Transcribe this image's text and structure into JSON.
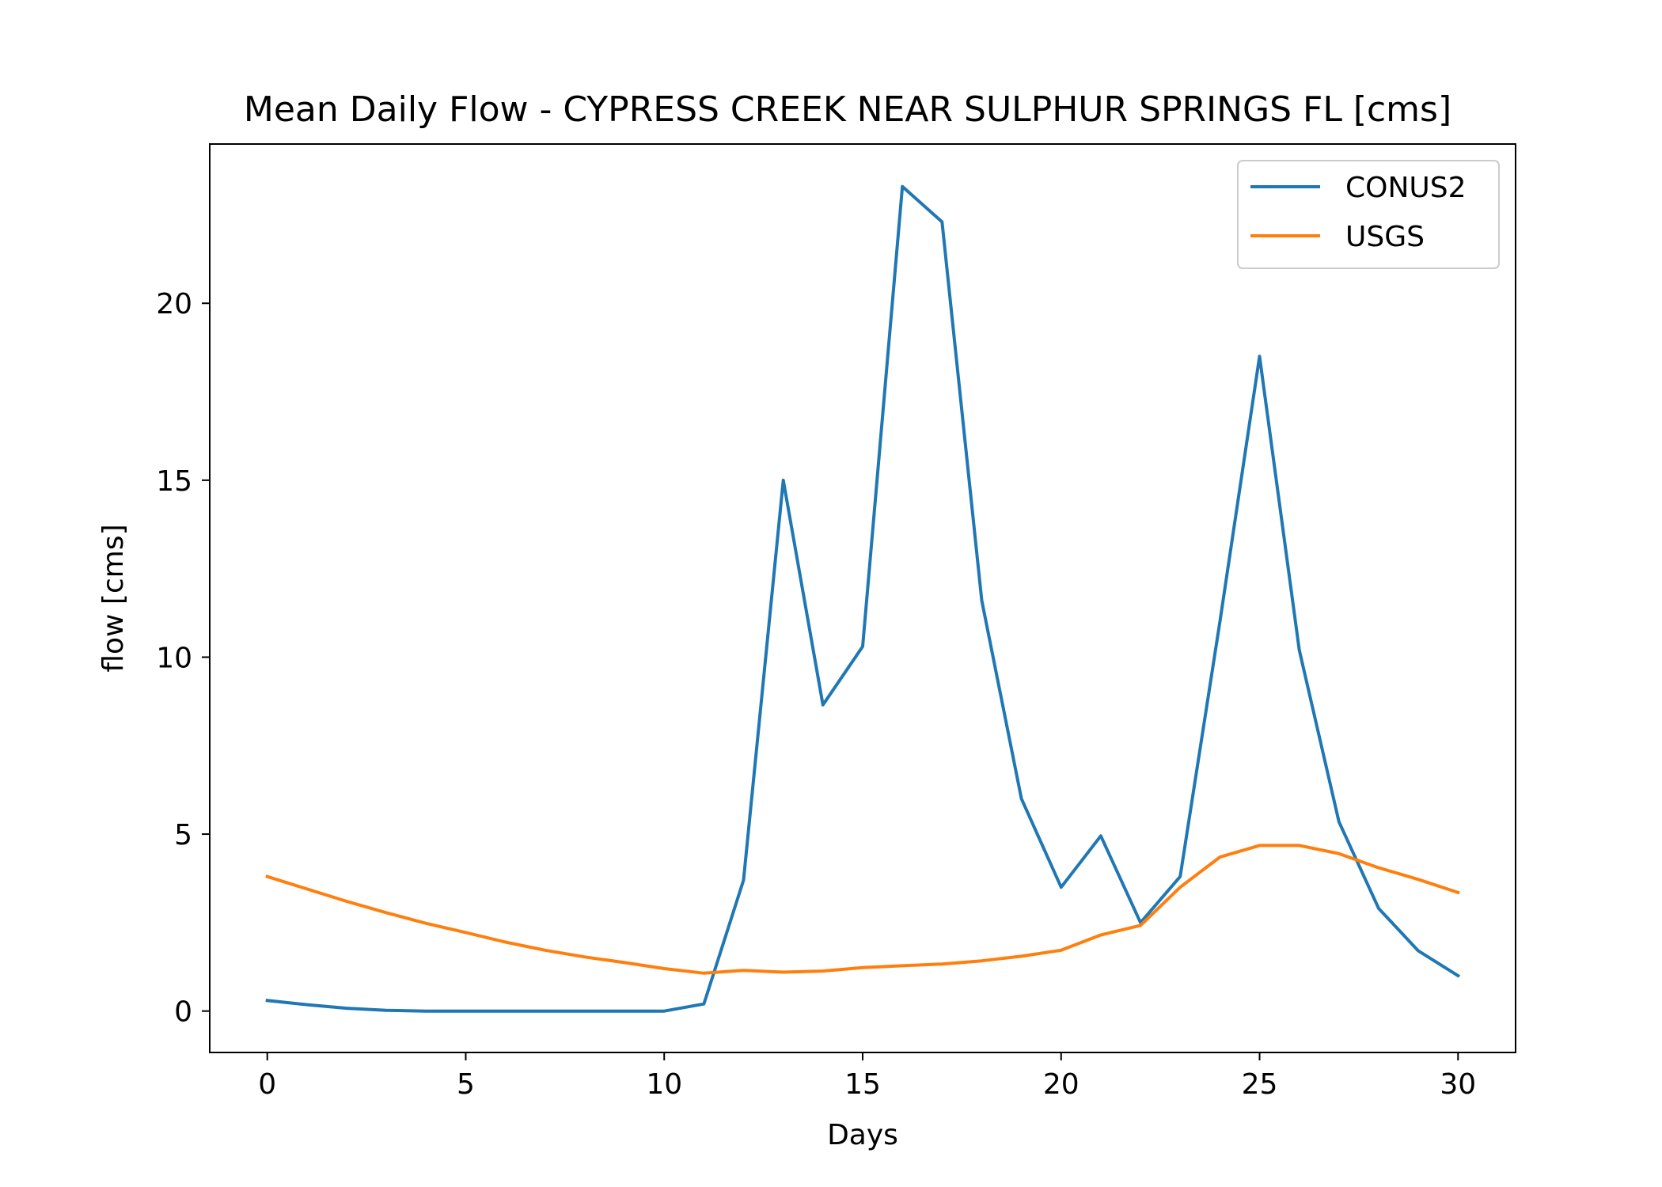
{
  "chart_data": {
    "type": "line",
    "title": "Mean Daily Flow - CYPRESS CREEK NEAR SULPHUR SPRINGS FL [cms]",
    "xlabel": "Days",
    "ylabel": "flow [cms]",
    "xlim": [
      -1.45,
      31.45
    ],
    "ylim": [
      -1.17,
      24.5
    ],
    "xticks": [
      0,
      5,
      10,
      15,
      20,
      25,
      30
    ],
    "xtick_labels": [
      "0",
      "5",
      "10",
      "15",
      "20",
      "25",
      "30"
    ],
    "yticks": [
      0,
      5,
      10,
      15,
      20
    ],
    "ytick_labels": [
      "0",
      "5",
      "10",
      "15",
      "20"
    ],
    "grid": false,
    "legend_position": "top-right",
    "x": [
      0,
      1,
      2,
      3,
      4,
      5,
      6,
      7,
      8,
      9,
      10,
      11,
      12,
      13,
      14,
      15,
      16,
      17,
      18,
      19,
      20,
      21,
      22,
      23,
      24,
      25,
      26,
      27,
      28,
      29,
      30
    ],
    "series": [
      {
        "name": "CONUS2",
        "color": "#1f77b4",
        "values": [
          0.3,
          0.18,
          0.08,
          0.02,
          0.0,
          0.0,
          0.0,
          0.0,
          0.0,
          0.0,
          0.0,
          0.2,
          3.7,
          15.0,
          8.65,
          10.3,
          23.3,
          22.3,
          11.6,
          6.0,
          3.5,
          4.95,
          2.5,
          3.8,
          11.0,
          18.5,
          10.2,
          5.35,
          2.9,
          1.7,
          1.0
        ]
      },
      {
        "name": "USGS",
        "color": "#ff7f0e",
        "values": [
          3.8,
          3.45,
          3.1,
          2.78,
          2.48,
          2.22,
          1.95,
          1.72,
          1.53,
          1.37,
          1.2,
          1.07,
          1.15,
          1.1,
          1.13,
          1.23,
          1.28,
          1.33,
          1.42,
          1.55,
          1.72,
          2.15,
          2.42,
          3.5,
          4.35,
          4.68,
          4.68,
          4.45,
          4.05,
          3.72,
          3.35
        ]
      }
    ]
  }
}
